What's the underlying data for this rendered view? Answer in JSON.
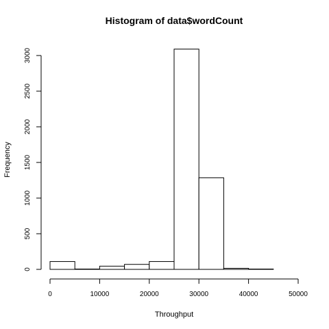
{
  "chart_data": {
    "type": "bar",
    "title": "Histogram of data$wordCount",
    "xlabel": "Throughput",
    "ylabel": "Frequency",
    "bins": [
      {
        "from": 0,
        "to": 5000,
        "value": 110
      },
      {
        "from": 5000,
        "to": 10000,
        "value": 5
      },
      {
        "from": 10000,
        "to": 15000,
        "value": 45
      },
      {
        "from": 15000,
        "to": 20000,
        "value": 70
      },
      {
        "from": 20000,
        "to": 25000,
        "value": 110
      },
      {
        "from": 25000,
        "to": 30000,
        "value": 3090
      },
      {
        "from": 30000,
        "to": 35000,
        "value": 1285
      },
      {
        "from": 35000,
        "to": 40000,
        "value": 15
      },
      {
        "from": 40000,
        "to": 45000,
        "value": 5
      },
      {
        "from": 45000,
        "to": 50000,
        "value": 0
      }
    ],
    "xlim": [
      0,
      50000
    ],
    "ylim": [
      0,
      3090
    ],
    "x_ticks": [
      0,
      10000,
      20000,
      30000,
      40000,
      50000
    ],
    "x_tick_labels": [
      "0",
      "10000",
      "20000",
      "30000",
      "40000",
      "50000"
    ],
    "y_ticks": [
      0,
      500,
      1000,
      1500,
      2000,
      2500,
      3000
    ],
    "y_tick_labels": [
      "0",
      "500",
      "1000",
      "1500",
      "2000",
      "2500",
      "3000"
    ],
    "grid": false,
    "legend": "none",
    "colors": {
      "bar_fill": "#ffffff",
      "bar_stroke": "#000000",
      "axis": "#000000",
      "background": "#ffffff"
    }
  }
}
